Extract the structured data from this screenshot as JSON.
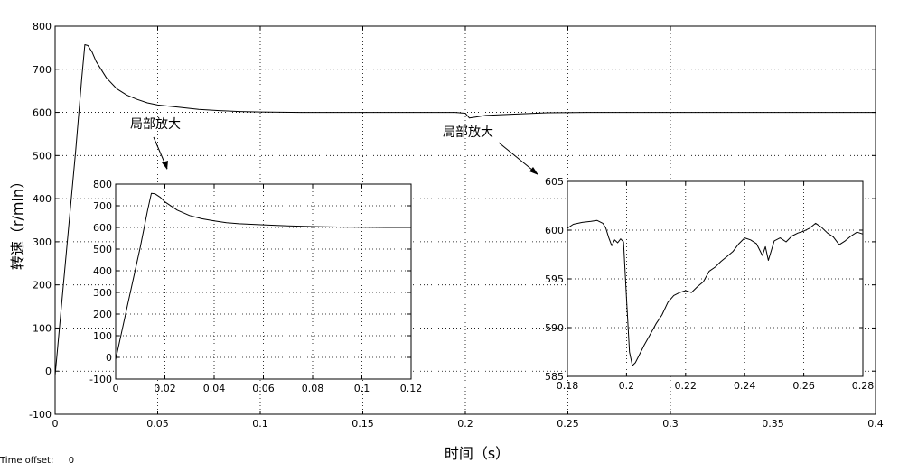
{
  "chart_data": [
    {
      "id": "main",
      "type": "line",
      "xlabel": "时间（s）",
      "ylabel": "转速（r/min）",
      "xlim": [
        0,
        0.4
      ],
      "ylim": [
        -100,
        800
      ],
      "xticks": [
        0,
        0.05,
        0.1,
        0.15,
        0.2,
        0.25,
        0.3,
        0.35,
        0.4
      ],
      "xtick_labels": [
        "0",
        "0.05",
        "0.1",
        "0.15",
        "0.2",
        "0.25",
        "0.3",
        "0.35",
        "0.4"
      ],
      "yticks": [
        -100,
        0,
        100,
        200,
        300,
        400,
        500,
        600,
        700,
        800
      ],
      "ytick_labels": [
        "-100",
        "0",
        "100",
        "200",
        "300",
        "400",
        "500",
        "600",
        "700",
        "800"
      ],
      "grid": true,
      "series": [
        {
          "color": "#000000",
          "x": [
            0,
            0.005,
            0.01,
            0.013,
            0.0145,
            0.016,
            0.018,
            0.02,
            0.025,
            0.03,
            0.035,
            0.04,
            0.045,
            0.05,
            0.06,
            0.07,
            0.08,
            0.09,
            0.1,
            0.12,
            0.15,
            0.18,
            0.195,
            0.2,
            0.202,
            0.205,
            0.21,
            0.22,
            0.24,
            0.26,
            0.28,
            0.3,
            0.35,
            0.4
          ],
          "y": [
            -10,
            250,
            510,
            680,
            757,
            755,
            740,
            718,
            680,
            655,
            640,
            630,
            622,
            617,
            612,
            607,
            604,
            602,
            601,
            600,
            600,
            600,
            600,
            598,
            587,
            589,
            593,
            595,
            599,
            600,
            600,
            600,
            600,
            600
          ]
        }
      ]
    },
    {
      "id": "inset1",
      "type": "line",
      "xlim": [
        0,
        0.12
      ],
      "ylim": [
        -100,
        800
      ],
      "xticks": [
        0,
        0.02,
        0.04,
        0.06,
        0.08,
        0.1,
        0.12
      ],
      "xtick_labels": [
        "0",
        "0.02",
        "0.04",
        "0.06",
        "0.08",
        "0.1",
        "0.12"
      ],
      "yticks": [
        -100,
        0,
        100,
        200,
        300,
        400,
        500,
        600,
        700,
        800
      ],
      "ytick_labels": [
        "-100",
        "0",
        "100",
        "200",
        "300",
        "400",
        "500",
        "600",
        "700",
        "800"
      ],
      "grid": true,
      "series": [
        {
          "color": "#000000",
          "x": [
            0,
            0.005,
            0.01,
            0.013,
            0.0145,
            0.016,
            0.018,
            0.02,
            0.025,
            0.03,
            0.035,
            0.04,
            0.045,
            0.05,
            0.06,
            0.07,
            0.08,
            0.09,
            0.1,
            0.11,
            0.12
          ],
          "y": [
            -10,
            250,
            510,
            680,
            757,
            755,
            740,
            718,
            680,
            655,
            640,
            630,
            622,
            617,
            612,
            607,
            604,
            602,
            601,
            600,
            600
          ]
        }
      ]
    },
    {
      "id": "inset2",
      "type": "line",
      "xlim": [
        0.18,
        0.28
      ],
      "ylim": [
        585,
        605
      ],
      "xticks": [
        0.18,
        0.2,
        0.22,
        0.24,
        0.26,
        0.28
      ],
      "xtick_labels": [
        "0.18",
        "0.2",
        "0.22",
        "0.24",
        "0.26",
        "0.28"
      ],
      "yticks": [
        585,
        590,
        595,
        600,
        605
      ],
      "ytick_labels": [
        "585",
        "590",
        "595",
        "600",
        "605"
      ],
      "grid": true,
      "series": [
        {
          "color": "#000000",
          "x": [
            0.18,
            0.182,
            0.185,
            0.188,
            0.19,
            0.192,
            0.193,
            0.194,
            0.195,
            0.196,
            0.197,
            0.198,
            0.199,
            0.2,
            0.201,
            0.202,
            0.203,
            0.204,
            0.206,
            0.208,
            0.21,
            0.212,
            0.214,
            0.216,
            0.218,
            0.22,
            0.222,
            0.224,
            0.226,
            0.228,
            0.23,
            0.232,
            0.234,
            0.236,
            0.238,
            0.24,
            0.242,
            0.244,
            0.246,
            0.247,
            0.248,
            0.25,
            0.252,
            0.254,
            0.256,
            0.258,
            0.26,
            0.262,
            0.264,
            0.266,
            0.268,
            0.27,
            0.272,
            0.274,
            0.276,
            0.278,
            0.28
          ],
          "y": [
            600.2,
            600.6,
            600.8,
            600.9,
            601.0,
            600.7,
            600.2,
            599.2,
            598.4,
            599.0,
            598.7,
            599.1,
            598.8,
            593.0,
            587.5,
            586.1,
            586.4,
            587.0,
            588.2,
            589.3,
            590.4,
            591.3,
            592.6,
            593.3,
            593.6,
            593.8,
            593.6,
            594.2,
            594.7,
            595.8,
            596.2,
            596.8,
            597.3,
            597.8,
            598.6,
            599.2,
            599.0,
            598.6,
            597.4,
            598.3,
            596.9,
            598.9,
            599.2,
            598.8,
            599.4,
            599.7,
            599.9,
            600.2,
            600.7,
            600.3,
            599.7,
            599.3,
            598.5,
            598.9,
            599.4,
            599.8,
            599.6
          ]
        }
      ]
    }
  ],
  "annotations": [
    "局部放大",
    "局部放大"
  ],
  "time_offset": {
    "label": "Time offset:",
    "value": "0"
  }
}
